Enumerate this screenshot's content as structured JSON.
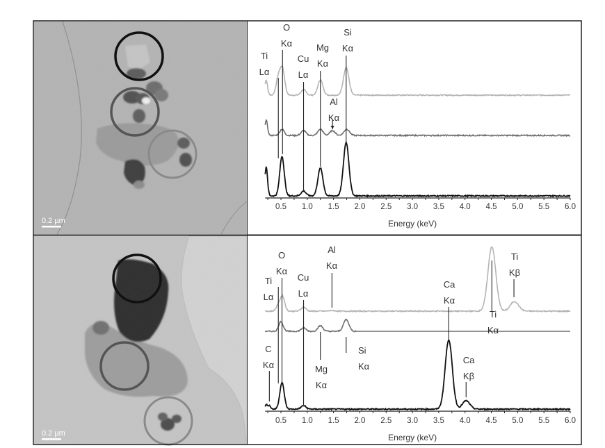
{
  "figure": {
    "panels": [
      {
        "scale_bar": "0.2 µm"
      },
      {
        "scale_bar": "0.2 µm"
      }
    ]
  },
  "colors": {
    "series_light": "#b4b4b4",
    "series_mid": "#6e6e6e",
    "series_dark": "#111111",
    "circle_dark": "#111111",
    "circle_mid": "#555555",
    "circle_light": "#8a8a8a"
  },
  "chart_data": [
    {
      "type": "line",
      "xlabel": "Energy (keV)",
      "ylabel": "",
      "xlim": [
        0.2,
        6.0
      ],
      "xticks": [
        "0.5",
        "1.0",
        "1.5",
        "2.0",
        "2.5",
        "3.0",
        "3.5",
        "4.0",
        "4.5",
        "5.0",
        "5.5",
        "6.0"
      ],
      "grid": false,
      "series": [
        {
          "color": "#b4b4b4",
          "offset": 148,
          "peaks": [
            [
              0.22,
              22
            ],
            [
              0.45,
              25
            ],
            [
              0.53,
              37
            ],
            [
              0.93,
              8
            ],
            [
              1.25,
              22
            ],
            [
              1.74,
              40
            ]
          ]
        },
        {
          "color": "#6e6e6e",
          "offset": 90,
          "peaks": [
            [
              0.22,
              22
            ],
            [
              0.52,
              9
            ],
            [
              0.93,
              7
            ],
            [
              1.25,
              9
            ],
            [
              1.48,
              7
            ],
            [
              1.75,
              9
            ]
          ]
        },
        {
          "color": "#111111",
          "offset": 3,
          "peaks": [
            [
              0.22,
              42
            ],
            [
              0.52,
              57
            ],
            [
              0.93,
              7
            ],
            [
              1.25,
              40
            ],
            [
              1.74,
              77
            ]
          ]
        }
      ],
      "annotations": [
        {
          "line1": "Ti",
          "line2": "Lα",
          "energy": 0.45
        },
        {
          "line1": "O",
          "line2": "Kα",
          "energy": 0.53
        },
        {
          "line1": "Cu",
          "line2": "Lα",
          "energy": 0.93
        },
        {
          "line1": "Mg",
          "line2": "Kα",
          "energy": 1.25
        },
        {
          "line1": "Si",
          "line2": "Kα",
          "energy": 1.74
        },
        {
          "line1": "Al",
          "line2": "Kα",
          "energy": 1.48
        }
      ]
    },
    {
      "type": "line",
      "xlabel": "Energy (keV)",
      "ylabel": "",
      "xlim": [
        0.2,
        6.0
      ],
      "xticks": [
        "0.5",
        "1.0",
        "1.5",
        "2.0",
        "2.5",
        "3.0",
        "3.5",
        "4.0",
        "4.5",
        "5.0",
        "5.5",
        "6.0"
      ],
      "grid": false,
      "series": [
        {
          "color": "#b4b4b4",
          "offset": 144,
          "peaks": [
            [
              0.45,
              8
            ],
            [
              0.53,
              21
            ],
            [
              0.93,
              6
            ],
            [
              1.47,
              1
            ],
            [
              4.51,
              93
            ],
            [
              4.94,
              14
            ]
          ]
        },
        {
          "color": "#6e6e6e",
          "offset": 115,
          "peaks": [
            [
              0.5,
              14
            ],
            [
              0.93,
              5
            ],
            [
              1.25,
              8
            ],
            [
              1.74,
              17
            ]
          ]
        },
        {
          "color": "#111111",
          "offset": 3,
          "peaks": [
            [
              0.22,
              6
            ],
            [
              0.28,
              5
            ],
            [
              0.52,
              38
            ],
            [
              0.93,
              5
            ],
            [
              3.69,
              100
            ],
            [
              4.02,
              12
            ]
          ]
        }
      ],
      "annotations": [
        {
          "line1": "Ti",
          "line2": "Lα",
          "energy": 0.45
        },
        {
          "line1": "O",
          "line2": "Kα",
          "energy": 0.52
        },
        {
          "line1": "Cu",
          "line2": "Lα",
          "energy": 0.93
        },
        {
          "line1": "Al",
          "line2": "Kα",
          "energy": 1.47
        },
        {
          "line1": "Ca",
          "line2": "Kα",
          "energy": 3.69
        },
        {
          "line1": "Ti",
          "line2": "Kβ",
          "energy": 4.93
        },
        {
          "line1": "Ti",
          "line2": "Kα",
          "energy": 4.51
        },
        {
          "line1": "Mg",
          "line2": "Kα",
          "energy": 1.25
        },
        {
          "line1": "Si",
          "line2": "Kα",
          "energy": 1.74
        },
        {
          "line1": "C",
          "line2": "Kα",
          "energy": 0.28
        },
        {
          "line1": "Ca",
          "line2": "Kβ",
          "energy": 4.02
        }
      ]
    }
  ]
}
